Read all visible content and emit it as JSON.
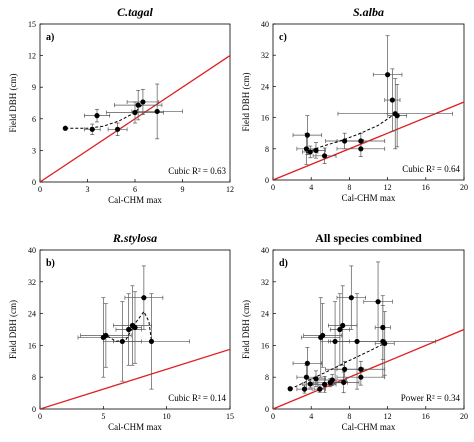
{
  "chart_data": [
    {
      "type": "scatter",
      "title": "C.tagal",
      "panel_label": "a)",
      "xlabel": "Cal-CHM max",
      "ylabel": "Field DBH (cm)",
      "xlim": [
        0,
        12
      ],
      "ylim": [
        0,
        15
      ],
      "xticks": [
        "0",
        "3",
        "6",
        "9",
        "12"
      ],
      "yticks": [
        "0",
        "3",
        "6",
        "9",
        "12",
        "15"
      ],
      "fit_label": "Cubic R² = 0.63",
      "fit_color": "#000000",
      "one_to_one_color": "#e02020",
      "points": [
        {
          "x": 1.6,
          "y": 5.1,
          "xerr": 0,
          "yerr": 0
        },
        {
          "x": 3.3,
          "y": 5.0,
          "xerr": 0.5,
          "yerr": 0.5
        },
        {
          "x": 3.6,
          "y": 6.3,
          "xerr": 0.8,
          "yerr": 0.6
        },
        {
          "x": 4.9,
          "y": 5.0,
          "xerr": 0.6,
          "yerr": 0.6
        },
        {
          "x": 6.0,
          "y": 6.6,
          "xerr": 1.8,
          "yerr": 1.0
        },
        {
          "x": 6.2,
          "y": 7.3,
          "xerr": 1.5,
          "yerr": 1.4
        },
        {
          "x": 6.5,
          "y": 7.6,
          "xerr": 1.0,
          "yerr": 1.2
        },
        {
          "x": 7.4,
          "y": 6.7,
          "xerr": 1.6,
          "yerr": 2.6
        }
      ],
      "fit_curve": [
        [
          1.6,
          5.1
        ],
        [
          3.0,
          5.1
        ],
        [
          4.0,
          5.3
        ],
        [
          5.0,
          5.8
        ],
        [
          6.0,
          6.6
        ],
        [
          6.6,
          7.6
        ]
      ]
    },
    {
      "type": "scatter",
      "title": "S.alba",
      "panel_label": "c)",
      "xlabel": "Cal-CHM max",
      "ylabel": "Field DBH (cm)",
      "xlim": [
        0,
        20
      ],
      "ylim": [
        0,
        40
      ],
      "xticks": [
        "0",
        "4",
        "8",
        "12",
        "16",
        "20"
      ],
      "yticks": [
        "0",
        "8",
        "16",
        "24",
        "32",
        "40"
      ],
      "fit_label": "Cubic R² = 0.64",
      "fit_color": "#000000",
      "one_to_one_color": "#e02020",
      "points": [
        {
          "x": 3.5,
          "y": 8.0,
          "xerr": 1.0,
          "yerr": 4.0
        },
        {
          "x": 3.6,
          "y": 11.5,
          "xerr": 1.5,
          "yerr": 5.0
        },
        {
          "x": 3.9,
          "y": 7.2,
          "xerr": 0.8,
          "yerr": 1.5
        },
        {
          "x": 4.5,
          "y": 7.6,
          "xerr": 1.0,
          "yerr": 2.0
        },
        {
          "x": 5.4,
          "y": 6.2,
          "xerr": 1.2,
          "yerr": 2.0
        },
        {
          "x": 7.5,
          "y": 10.0,
          "xerr": 2.0,
          "yerr": 2.0
        },
        {
          "x": 9.2,
          "y": 8.0,
          "xerr": 2.5,
          "yerr": 2.0
        },
        {
          "x": 9.2,
          "y": 10.0,
          "xerr": 2.5,
          "yerr": 2.0
        },
        {
          "x": 12.0,
          "y": 27.0,
          "xerr": 1.5,
          "yerr": 10.0
        },
        {
          "x": 12.5,
          "y": 20.5,
          "xerr": 0.8,
          "yerr": 8.0
        },
        {
          "x": 12.8,
          "y": 17.0,
          "xerr": 6.0,
          "yerr": 9.0
        },
        {
          "x": 13.0,
          "y": 16.5,
          "xerr": 1.0,
          "yerr": 8.0
        }
      ],
      "fit_curve": [
        [
          3.5,
          7.0
        ],
        [
          5.0,
          8.5
        ],
        [
          7.0,
          10.0
        ],
        [
          9.0,
          11.8
        ],
        [
          11.0,
          14.0
        ],
        [
          12.8,
          17.0
        ]
      ]
    },
    {
      "type": "scatter",
      "title": "R.stylosa",
      "panel_label": "b)",
      "xlabel": "Cal-CHM max",
      "ylabel": "Field DBH (cm)",
      "xlim": [
        0,
        15
      ],
      "ylim": [
        0,
        40
      ],
      "xticks": [
        "0",
        "5",
        "10",
        "15"
      ],
      "yticks": [
        "0",
        "8",
        "16",
        "24",
        "32",
        "40"
      ],
      "fit_label": "Cubic R² = 0.14",
      "fit_color": "#000000",
      "one_to_one_color": "#e02020",
      "points": [
        {
          "x": 5.0,
          "y": 18.0,
          "xerr": 2.0,
          "yerr": 10.0
        },
        {
          "x": 5.2,
          "y": 18.5,
          "xerr": 2.0,
          "yerr": 8.0
        },
        {
          "x": 6.5,
          "y": 17.0,
          "xerr": 1.5,
          "yerr": 10.0
        },
        {
          "x": 7.0,
          "y": 20.0,
          "xerr": 1.0,
          "yerr": 9.0
        },
        {
          "x": 7.3,
          "y": 21.0,
          "xerr": 1.5,
          "yerr": 10.0
        },
        {
          "x": 7.5,
          "y": 20.5,
          "xerr": 0.5,
          "yerr": 9.0
        },
        {
          "x": 8.2,
          "y": 28.0,
          "xerr": 1.5,
          "yerr": 8.0
        },
        {
          "x": 8.8,
          "y": 17.0,
          "xerr": 3.0,
          "yerr": 12.0
        }
      ],
      "fit_curve": [
        [
          5.0,
          19.0
        ],
        [
          6.0,
          17.0
        ],
        [
          6.8,
          17.5
        ],
        [
          7.5,
          21.5
        ],
        [
          8.2,
          24.5
        ],
        [
          8.6,
          22.0
        ],
        [
          8.8,
          17.0
        ]
      ]
    },
    {
      "type": "scatter",
      "title": "All species combined",
      "panel_label": "d)",
      "xlabel": "Cal-CHM max",
      "ylabel": "Field DBH (cm)",
      "xlim": [
        0,
        20
      ],
      "ylim": [
        0,
        40
      ],
      "xticks": [
        "0",
        "4",
        "8",
        "12",
        "16",
        "20"
      ],
      "yticks": [
        "0",
        "8",
        "16",
        "24",
        "32",
        "40"
      ],
      "fit_label": "Power R² = 0.34",
      "fit_color": "#000000",
      "one_to_one_color": "#e02020",
      "points": [
        {
          "x": 1.8,
          "y": 5.1,
          "xerr": 0,
          "yerr": 0
        },
        {
          "x": 3.3,
          "y": 5.0,
          "xerr": 0.8,
          "yerr": 1.0
        },
        {
          "x": 3.5,
          "y": 8.0,
          "xerr": 1.0,
          "yerr": 3.0
        },
        {
          "x": 3.6,
          "y": 11.5,
          "xerr": 1.5,
          "yerr": 4.0
        },
        {
          "x": 3.9,
          "y": 6.3,
          "xerr": 0.8,
          "yerr": 1.0
        },
        {
          "x": 4.5,
          "y": 7.6,
          "xerr": 1.0,
          "yerr": 2.0
        },
        {
          "x": 4.9,
          "y": 5.0,
          "xerr": 0.6,
          "yerr": 0.8
        },
        {
          "x": 5.0,
          "y": 18.0,
          "xerr": 2.0,
          "yerr": 10.0
        },
        {
          "x": 5.2,
          "y": 18.5,
          "xerr": 2.0,
          "yerr": 8.0
        },
        {
          "x": 5.4,
          "y": 6.2,
          "xerr": 1.2,
          "yerr": 2.0
        },
        {
          "x": 6.0,
          "y": 6.6,
          "xerr": 1.8,
          "yerr": 1.0
        },
        {
          "x": 6.2,
          "y": 7.3,
          "xerr": 1.5,
          "yerr": 1.4
        },
        {
          "x": 6.5,
          "y": 17.0,
          "xerr": 1.5,
          "yerr": 10.0
        },
        {
          "x": 7.0,
          "y": 20.0,
          "xerr": 1.0,
          "yerr": 9.0
        },
        {
          "x": 7.3,
          "y": 21.0,
          "xerr": 1.5,
          "yerr": 10.0
        },
        {
          "x": 7.4,
          "y": 6.7,
          "xerr": 1.6,
          "yerr": 2.6
        },
        {
          "x": 7.5,
          "y": 10.0,
          "xerr": 2.0,
          "yerr": 2.0
        },
        {
          "x": 8.2,
          "y": 28.0,
          "xerr": 1.5,
          "yerr": 8.0
        },
        {
          "x": 8.8,
          "y": 17.0,
          "xerr": 3.0,
          "yerr": 12.0
        },
        {
          "x": 9.2,
          "y": 8.0,
          "xerr": 2.5,
          "yerr": 2.0
        },
        {
          "x": 9.2,
          "y": 10.0,
          "xerr": 2.5,
          "yerr": 2.0
        },
        {
          "x": 11.0,
          "y": 27.0,
          "xerr": 1.5,
          "yerr": 10.0
        },
        {
          "x": 11.5,
          "y": 20.5,
          "xerr": 0.8,
          "yerr": 8.0
        },
        {
          "x": 11.5,
          "y": 17.0,
          "xerr": 5.5,
          "yerr": 9.0
        },
        {
          "x": 11.7,
          "y": 16.5,
          "xerr": 1.0,
          "yerr": 8.0
        }
      ],
      "fit_curve": [
        [
          1.8,
          5.0
        ],
        [
          4.0,
          7.5
        ],
        [
          6.0,
          9.8
        ],
        [
          8.0,
          12.2
        ],
        [
          10.0,
          14.5
        ],
        [
          11.7,
          16.5
        ]
      ]
    }
  ]
}
